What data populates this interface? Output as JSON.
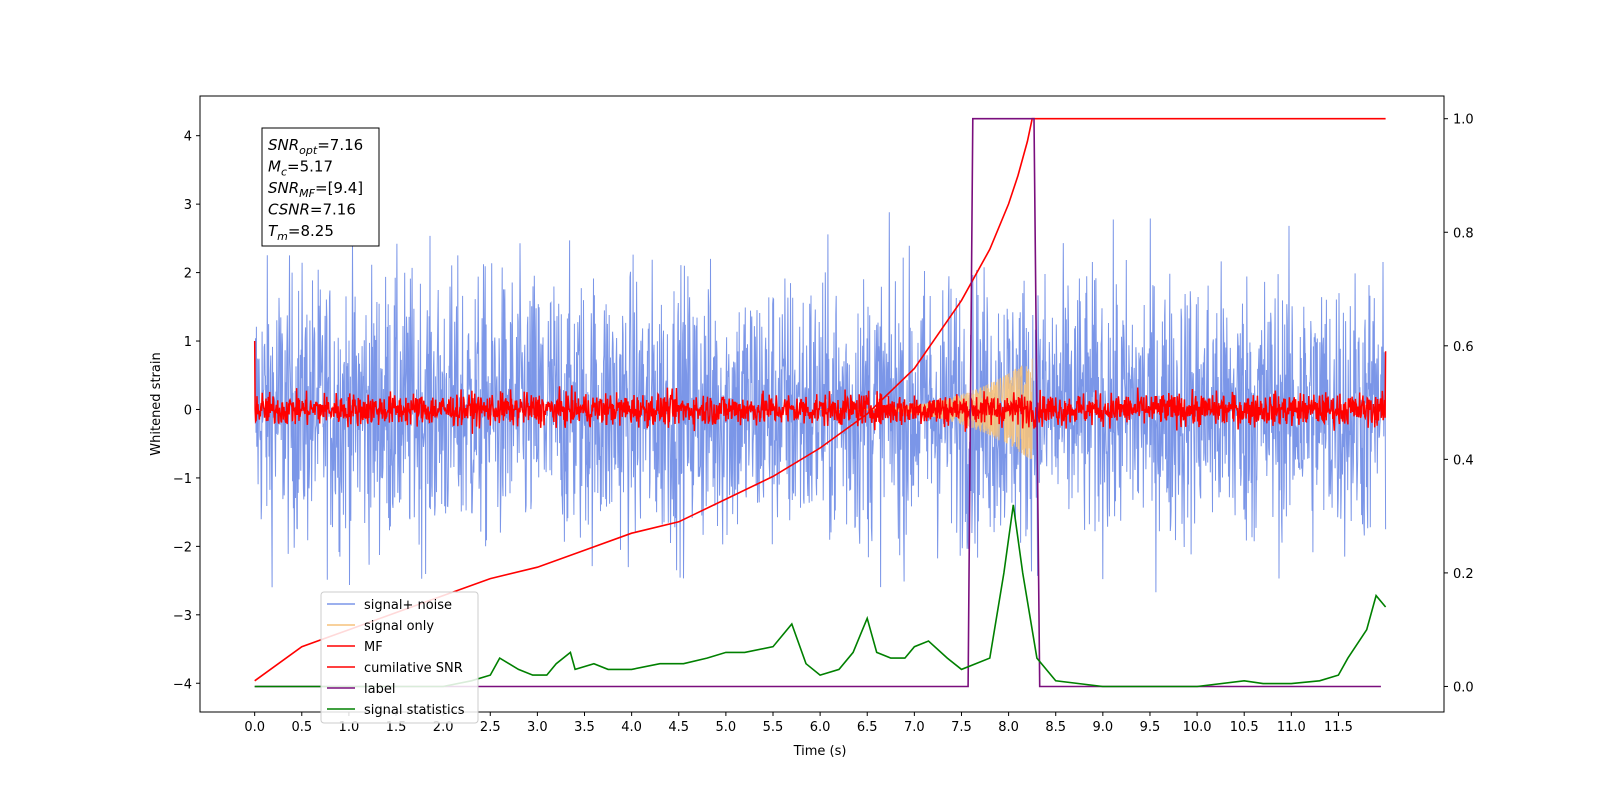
{
  "chart_data": {
    "type": "line",
    "title": "",
    "xlabel": "Time (s)",
    "ylabel": "Whitened strain",
    "ylabel_right": "",
    "xlim": [
      -0.58,
      12.62
    ],
    "ylim": [
      -4.42,
      4.58
    ],
    "ylim_right": [
      -0.045,
      1.04
    ],
    "x_ticks": [
      "0.0",
      "0.5",
      "1.0",
      "1.5",
      "2.0",
      "2.5",
      "3.0",
      "3.5",
      "4.0",
      "4.5",
      "5.0",
      "5.5",
      "6.0",
      "6.5",
      "7.0",
      "7.5",
      "8.0",
      "8.5",
      "9.0",
      "9.5",
      "10.0",
      "10.5",
      "11.0",
      "11.5"
    ],
    "y_ticks_left": [
      "4",
      "3",
      "2",
      "1",
      "0",
      "−1",
      "−2",
      "−3",
      "−4"
    ],
    "y_ticks_right": [
      "1.0",
      "0.8",
      "0.6",
      "0.4",
      "0.2",
      "0.0"
    ],
    "grid": false,
    "legend_position": "lower-left",
    "annotation": {
      "lines": [
        {
          "base": "SNR",
          "sub": "opt",
          "value": "=7.16"
        },
        {
          "base": "M",
          "sub": "c",
          "value": "=5.17"
        },
        {
          "base": "SNR",
          "sub": "MF",
          "value": "=[9.4]"
        },
        {
          "base": "CSNR",
          "sub": "",
          "value": "=7.16"
        },
        {
          "base": "T",
          "sub": "m",
          "value": "=8.25"
        }
      ]
    },
    "series": [
      {
        "name": "signal+ noise",
        "color": "#7b96e8",
        "axis": "left",
        "style": "noise",
        "amplitude": 1.0,
        "t_start": 0.0,
        "t_end": 12.0
      },
      {
        "name": "signal only",
        "color": "#f5c27c",
        "axis": "left",
        "style": "chirp",
        "t_start": 6.0,
        "t_end": 8.25,
        "peak_amplitude": 0.75
      },
      {
        "name": "MF",
        "color": "#ff0000",
        "axis": "left",
        "style": "noise",
        "amplitude": 0.12,
        "t_start": 0.0,
        "t_end": 12.0,
        "edge_values": [
          1.0,
          0.85
        ]
      },
      {
        "name": "cumilative SNR",
        "color": "#ff0000",
        "axis": "right",
        "x": [
          0.0,
          0.5,
          1.0,
          1.5,
          2.0,
          2.5,
          3.0,
          3.5,
          4.0,
          4.5,
          5.0,
          5.5,
          6.0,
          6.5,
          7.0,
          7.5,
          7.8,
          8.0,
          8.1,
          8.2,
          8.25,
          8.3,
          12.0
        ],
        "values": [
          0.01,
          0.07,
          0.1,
          0.13,
          0.16,
          0.19,
          0.21,
          0.24,
          0.27,
          0.29,
          0.33,
          0.37,
          0.42,
          0.48,
          0.56,
          0.68,
          0.77,
          0.85,
          0.9,
          0.96,
          1.0,
          1.0,
          1.0
        ]
      },
      {
        "name": "label",
        "color": "#7a0e7d",
        "axis": "right",
        "x": [
          0.0,
          7.57,
          7.62,
          8.27,
          8.33,
          11.95
        ],
        "values": [
          0.0,
          0.0,
          1.0,
          1.0,
          0.0,
          0.0
        ]
      },
      {
        "name": "signal statistics",
        "color": "#008000",
        "axis": "right",
        "x": [
          0.0,
          0.5,
          1.0,
          1.5,
          2.0,
          2.3,
          2.5,
          2.6,
          2.8,
          2.95,
          3.1,
          3.2,
          3.35,
          3.4,
          3.6,
          3.75,
          4.0,
          4.3,
          4.55,
          4.8,
          5.0,
          5.2,
          5.5,
          5.7,
          5.85,
          6.0,
          6.2,
          6.35,
          6.5,
          6.6,
          6.75,
          6.9,
          7.0,
          7.15,
          7.35,
          7.5,
          7.8,
          7.95,
          8.05,
          8.15,
          8.3,
          8.5,
          9.0,
          9.5,
          10.0,
          10.5,
          10.7,
          11.0,
          11.3,
          11.5,
          11.6,
          11.8,
          11.9,
          12.0
        ],
        "values": [
          0.0,
          0.0,
          0.0,
          0.0,
          0.0,
          0.01,
          0.02,
          0.05,
          0.03,
          0.02,
          0.02,
          0.04,
          0.06,
          0.03,
          0.04,
          0.03,
          0.03,
          0.04,
          0.04,
          0.05,
          0.06,
          0.06,
          0.07,
          0.11,
          0.04,
          0.02,
          0.03,
          0.06,
          0.12,
          0.06,
          0.05,
          0.05,
          0.07,
          0.08,
          0.05,
          0.03,
          0.05,
          0.2,
          0.32,
          0.2,
          0.05,
          0.01,
          0.0,
          0.0,
          0.0,
          0.01,
          0.005,
          0.005,
          0.01,
          0.02,
          0.05,
          0.1,
          0.16,
          0.14
        ]
      }
    ]
  }
}
